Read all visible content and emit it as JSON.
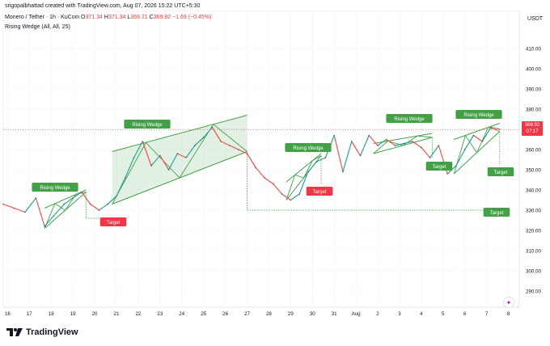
{
  "header": {
    "created": "srigopalbhattad created with TradingView.com, Aug 07, 2026 15:22 UTC+5:30",
    "symbol": "Monero / Tether · 1h · KuCoin",
    "ohlc": {
      "o_label": "O",
      "o": "371.34",
      "h_label": "H",
      "h": "371.34",
      "l_label": "L",
      "l": "369.71",
      "c_label": "C",
      "c": "369.92",
      "change": "−1.69 (−0.45%)"
    },
    "indicator": "Rising Wedge (All, All, 25)"
  },
  "price_axis": {
    "currency": "USDT",
    "last_price": "369.92",
    "countdown": "07:17"
  },
  "footer": {
    "brand": "TradingView"
  },
  "colors": {
    "up": "#26a69a",
    "down": "#ef5350",
    "pattern": "#43a047",
    "target": "#f23645",
    "price_line": "#f23645"
  },
  "chart_data": {
    "type": "line",
    "ylim": [
      282,
      418
    ],
    "y_ticks": [
      "410.00",
      "400.00",
      "390.00",
      "380.00",
      "370.00",
      "360.00",
      "350.00",
      "340.00",
      "330.00",
      "320.00",
      "310.00",
      "300.00",
      "290.00"
    ],
    "x_ticks": [
      "16",
      "17",
      "18",
      "19",
      "20",
      "21",
      "22",
      "23",
      "24",
      "25",
      "26",
      "27",
      "28",
      "29",
      "30",
      "31",
      "Aug",
      "2",
      "3",
      "4",
      "5",
      "6",
      "7",
      "8"
    ],
    "x_tick_days": [
      16,
      17,
      18,
      19,
      20,
      21,
      22,
      23,
      24,
      25,
      26,
      27,
      28,
      29,
      30,
      31,
      32,
      33,
      34,
      35,
      36,
      37,
      38,
      39
    ],
    "xlim": [
      15.8,
      39.5
    ],
    "series": [
      {
        "name": "",
        "values_note": "",
        "x": [
          15.8,
          16.3,
          16.8,
          17.3,
          17.7,
          18.1,
          18.6,
          19.0,
          19.4,
          19.8,
          20.2,
          20.6,
          21.0,
          21.4,
          21.8,
          22.2,
          22.6,
          23.0,
          23.4,
          23.8,
          24.2,
          24.6,
          25.0,
          25.4,
          25.8,
          26.2,
          26.6,
          27.0,
          27.4,
          27.8,
          28.2,
          28.6,
          29.0,
          29.4,
          29.8,
          30.2,
          30.6,
          31.0,
          31.4,
          31.8,
          32.2,
          32.6,
          33.0,
          33.4,
          33.8,
          34.2,
          34.6,
          35.0,
          35.4,
          35.8,
          36.2,
          36.6,
          37.0,
          37.4,
          37.8,
          38.2,
          38.6
        ],
        "y": [
          333,
          331,
          329,
          336,
          322,
          327,
          333,
          336,
          339,
          333,
          330,
          333,
          337,
          346,
          356,
          364,
          352,
          357,
          350,
          358,
          356,
          362,
          366,
          371,
          364,
          362,
          360,
          358,
          351,
          346,
          343,
          338,
          335,
          338,
          349,
          354,
          356,
          367,
          349,
          364,
          357,
          367,
          362,
          365,
          362,
          363,
          364,
          361,
          356,
          362,
          348,
          352,
          360,
          367,
          364,
          371,
          370
        ]
      }
    ],
    "patterns": [
      {
        "label": "Rising Wedge",
        "target_label": "Target",
        "target_price": 326.0
      },
      {
        "label": "Rising Wedge",
        "target_label": "Target",
        "target_price": null
      },
      {
        "label": "Rising Wedge",
        "target_label": "Target",
        "target_price": 339.0
      },
      {
        "label": "Rising Wedge",
        "target_label": "Target",
        "target_price": 349.0
      },
      {
        "label": "Rising Wedge",
        "target_label": "Target",
        "target_price": 345.0
      },
      {
        "label": "Target",
        "target_label": "Target",
        "target_price": 330.0
      }
    ]
  }
}
